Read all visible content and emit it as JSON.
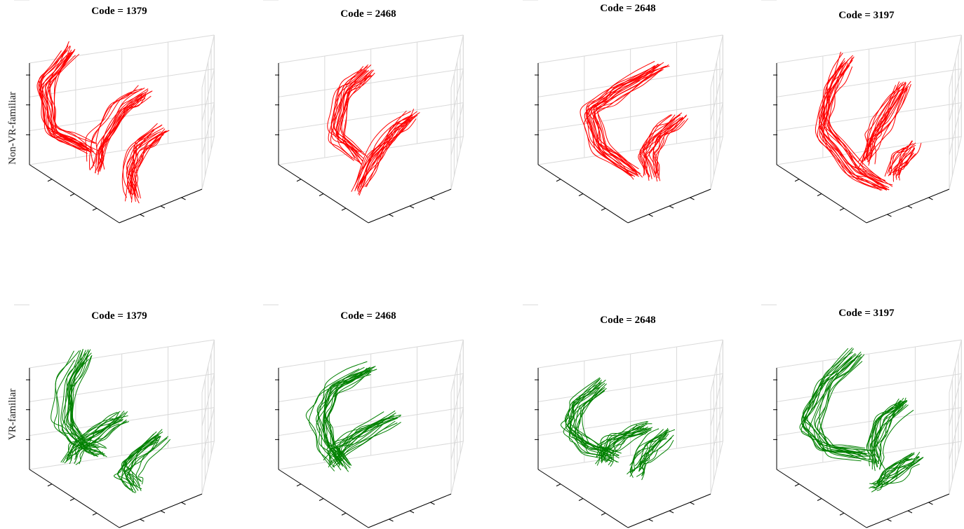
{
  "rows": [
    {
      "label": "Non-VR-familiar",
      "color": "#ff0000",
      "panels": [
        {
          "title": "Code = 1379"
        },
        {
          "title": "Code = 2468"
        },
        {
          "title": "Code = 2648"
        },
        {
          "title": "Code = 3197"
        }
      ]
    },
    {
      "label": "VR-familiar",
      "color": "#008000",
      "panels": [
        {
          "title": "Code = 1379"
        },
        {
          "title": "Code = 2468"
        },
        {
          "title": "Code = 2648"
        },
        {
          "title": "Code = 3197"
        }
      ]
    }
  ],
  "chart_data": {
    "type": "line",
    "projection": "3d",
    "grid": true,
    "tick_labels_shown": false,
    "panels_per_row": 4,
    "codes": [
      "1379",
      "2468",
      "2648",
      "3197"
    ],
    "series": [
      {
        "name": "Non-VR-familiar",
        "color": "#ff0000"
      },
      {
        "name": "VR-familiar",
        "color": "#008000"
      }
    ]
  }
}
